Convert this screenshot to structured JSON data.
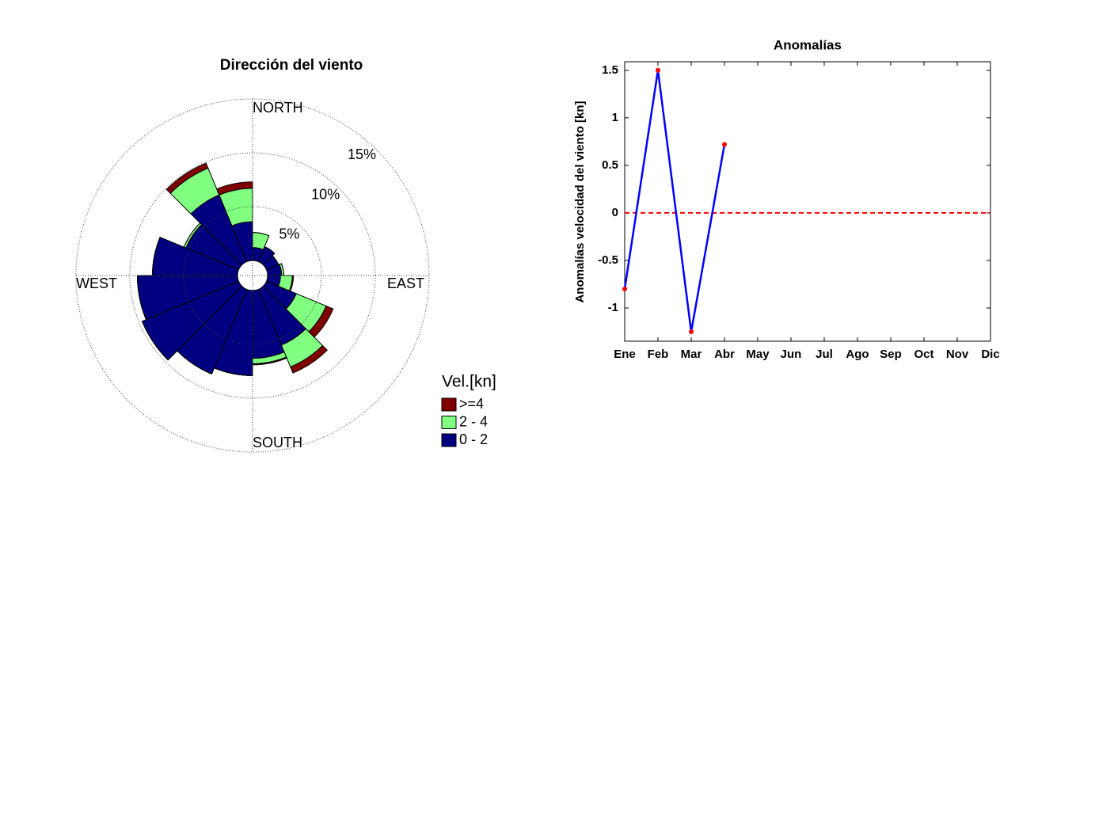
{
  "chart_data": [
    {
      "type": "windrose",
      "title": "Dirección del viento",
      "categories": [
        null,
        null,
        null,
        null,
        null,
        null,
        null,
        null,
        null,
        null,
        null,
        null,
        null,
        null,
        null,
        null
      ],
      "series": [
        {
          "name": "0 - 2",
          "color": "#000080",
          "values": [
            1.2,
            1.5,
            1.2,
            1.3,
            1.2,
            3.0,
            5.6,
            6.3,
            7.9,
            8.5,
            9.7,
            9.3,
            7.9,
            5.3,
            6.7,
            3.6
          ]
        },
        {
          "name": "2 - 4",
          "color": "#80ff80",
          "values": [
            1.4,
            0,
            0,
            0.2,
            1.1,
            3.0,
            2.2,
            0.5,
            0,
            0,
            0,
            0,
            0,
            0.2,
            2.7,
            3.1
          ]
        },
        {
          "name": ">=4",
          "color": "#800000",
          "values": [
            0,
            0,
            0,
            0,
            0.1,
            0.7,
            0.6,
            0.1,
            0,
            0,
            0,
            0,
            0,
            0,
            0.5,
            0.6
          ]
        }
      ],
      "compass_labels": [
        "NORTH",
        "EAST",
        "SOUTH",
        "WEST"
      ],
      "rlim": [
        0,
        15
      ],
      "rticks": [
        {
          "value": 5,
          "label": "5%"
        },
        {
          "value": 10,
          "label": "10%"
        },
        {
          "value": 15,
          "label": "15%"
        }
      ],
      "legend_title": "Vel.[kn]",
      "grid": true
    },
    {
      "type": "line",
      "title": "Anomalías",
      "ylabel": "Anomalías velocidad del viento [kn]",
      "categories": [
        "Ene",
        "Feb",
        "Mar",
        "Abr",
        "May",
        "Jun",
        "Jul",
        "Ago",
        "Sep",
        "Oct",
        "Nov",
        "Dic"
      ],
      "series": [
        {
          "name": "Anomalías",
          "color": "#0000ff",
          "marker_color": "#ff0000",
          "values": [
            -0.8,
            1.5,
            -1.25,
            0.72,
            null,
            null,
            null,
            null,
            null,
            null,
            null,
            null
          ]
        }
      ],
      "reference_line": {
        "value": 0,
        "color": "#ff0000"
      },
      "ylim": [
        -1.35,
        1.59
      ],
      "yticks": [
        -1,
        -0.5,
        0,
        0.5,
        1,
        1.5
      ]
    }
  ]
}
